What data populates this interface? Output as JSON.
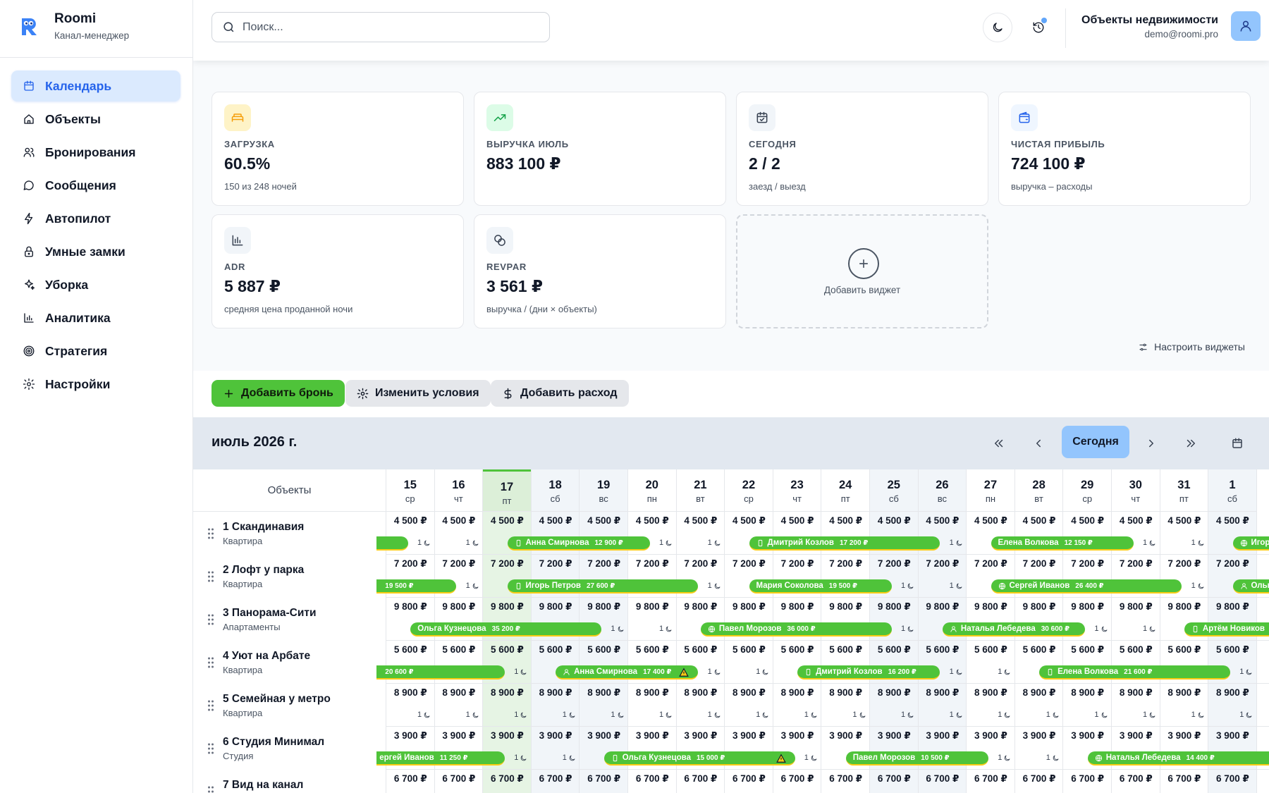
{
  "brand": {
    "name": "Roomi",
    "subtitle": "Канал-менеджер"
  },
  "nav": [
    {
      "label": "Календарь",
      "icon": "calendar-icon",
      "active": true
    },
    {
      "label": "Объекты",
      "icon": "home-icon"
    },
    {
      "label": "Бронирования",
      "icon": "users-icon"
    },
    {
      "label": "Сообщения",
      "icon": "message-icon"
    },
    {
      "label": "Автопилот",
      "icon": "bolt-icon"
    },
    {
      "label": "Умные замки",
      "icon": "lock-icon"
    },
    {
      "label": "Уборка",
      "icon": "sparkle-icon"
    },
    {
      "label": "Аналитика",
      "icon": "bar-chart-icon"
    },
    {
      "label": "Стратегия",
      "icon": "target-icon"
    },
    {
      "label": "Настройки",
      "icon": "gear-icon"
    }
  ],
  "search": {
    "placeholder": "Поиск..."
  },
  "user": {
    "name": "Объекты недвижимости",
    "email": "demo@roomi.pro"
  },
  "widgets": [
    {
      "label": "ЗАГРУЗКА",
      "value": "60.5%",
      "sub": "150 из 248 ночей",
      "icon": "bed-icon",
      "icon_bg": "#fef3c7",
      "icon_color": "#f59e0b"
    },
    {
      "label": "ВЫРУЧКА ИЮЛЬ",
      "value": "883 100 ₽",
      "sub": "",
      "icon": "trend-up-icon",
      "icon_bg": "#dcfce7",
      "icon_color": "#16a34a"
    },
    {
      "label": "СЕГОДНЯ",
      "value": "2 / 2",
      "sub": "заезд / выезд",
      "icon": "calendar-check-icon",
      "icon_bg": "#f1f5f9",
      "icon_color": "#374151"
    },
    {
      "label": "ЧИСТАЯ ПРИБЫЛЬ",
      "value": "724 100 ₽",
      "sub": "выручка – расходы",
      "icon": "wallet-icon",
      "icon_bg": "#eff6ff",
      "icon_color": "#2563eb"
    },
    {
      "label": "ADR",
      "value": "5 887 ₽",
      "sub": "средняя цена проданной ночи",
      "icon": "chart-icon",
      "icon_bg": "#f1f5f9",
      "icon_color": "#374151"
    },
    {
      "label": "REVPAR",
      "value": "3 561 ₽",
      "sub": "выручка / (дни × объекты)",
      "icon": "coins-icon",
      "icon_bg": "#f1f5f9",
      "icon_color": "#374151"
    }
  ],
  "add_widget": "Добавить виджет",
  "configure_widgets": "Настроить виджеты",
  "actions": {
    "add_booking": "Добавить бронь",
    "change_terms": "Изменить условия",
    "add_expense": "Добавить расход"
  },
  "calendar": {
    "month": "июль 2026 г.",
    "today_label": "Сегодня",
    "objects_header": "Объекты",
    "days": [
      {
        "d": "15",
        "w": "ср"
      },
      {
        "d": "16",
        "w": "чт"
      },
      {
        "d": "17",
        "w": "пт",
        "today": true
      },
      {
        "d": "18",
        "w": "сб",
        "weekend": true
      },
      {
        "d": "19",
        "w": "вс",
        "weekend": true
      },
      {
        "d": "20",
        "w": "пн"
      },
      {
        "d": "21",
        "w": "вт"
      },
      {
        "d": "22",
        "w": "ср"
      },
      {
        "d": "23",
        "w": "чт"
      },
      {
        "d": "24",
        "w": "пт"
      },
      {
        "d": "25",
        "w": "сб",
        "weekend": true
      },
      {
        "d": "26",
        "w": "вс",
        "weekend": true
      },
      {
        "d": "27",
        "w": "пн"
      },
      {
        "d": "28",
        "w": "вт"
      },
      {
        "d": "29",
        "w": "ср"
      },
      {
        "d": "30",
        "w": "чт"
      },
      {
        "d": "31",
        "w": "пт"
      },
      {
        "d": "1",
        "w": "сб",
        "weekend": true
      }
    ],
    "properties": [
      {
        "name": "1 Скандинавия",
        "type": "Квартира",
        "price": "4 500 ₽",
        "bookings": [
          {
            "guest": "",
            "amount": "",
            "start": -1,
            "end": 0.45
          },
          {
            "guest": "Анна Смирнова",
            "amount": "12 900 ₽",
            "start": 2.5,
            "end": 5.45,
            "src": "phone"
          },
          {
            "guest": "Дмитрий Козлов",
            "amount": "17 200 ₽",
            "start": 7.5,
            "end": 11.45,
            "src": "phone"
          },
          {
            "guest": "Елена Волкова",
            "amount": "12 150 ₽",
            "start": 12.5,
            "end": 15.45
          },
          {
            "guest": "Игорь Петров",
            "amount": "",
            "start": 17.5,
            "end": 20,
            "src": "globe"
          }
        ]
      },
      {
        "name": "2 Лофт у парка",
        "type": "Квартира",
        "price": "7 200 ₽",
        "bookings": [
          {
            "guest": "",
            "amount": "19 500 ₽",
            "start": -1,
            "end": 1.45
          },
          {
            "guest": "Игорь Петров",
            "amount": "27 600 ₽",
            "start": 2.5,
            "end": 6.45,
            "src": "phone"
          },
          {
            "guest": "Мария Соколова",
            "amount": "19 500 ₽",
            "start": 7.5,
            "end": 10.45
          },
          {
            "guest": "Сергей Иванов",
            "amount": "26 400 ₽",
            "start": 12.5,
            "end": 16.45,
            "src": "globe"
          },
          {
            "guest": "Ольга Кузнецова",
            "amount": "",
            "start": 17.5,
            "end": 20,
            "src": "user"
          }
        ]
      },
      {
        "name": "3 Панорама-Сити",
        "type": "Апартаменты",
        "price": "9 800 ₽",
        "bookings": [
          {
            "guest": "Ольга Кузнецова",
            "amount": "35 200 ₽",
            "start": 0.5,
            "end": 4.45
          },
          {
            "guest": "Павел Морозов",
            "amount": "36 000 ₽",
            "start": 6.5,
            "end": 10.45,
            "src": "globe"
          },
          {
            "guest": "Наталья Лебедева",
            "amount": "30 600 ₽",
            "start": 11.5,
            "end": 14.45,
            "src": "user"
          },
          {
            "guest": "Артём Новиков",
            "amount": "",
            "start": 16.5,
            "end": 20,
            "src": "phone"
          }
        ]
      },
      {
        "name": "4 Уют на Арбате",
        "type": "Квартира",
        "price": "5 600 ₽",
        "bookings": [
          {
            "guest": "",
            "amount": "20 600 ₽",
            "start": -1,
            "end": 2.45
          },
          {
            "guest": "Анна Смирнова",
            "amount": "17 400 ₽",
            "start": 3.5,
            "end": 6.45,
            "src": "user",
            "warn": true
          },
          {
            "guest": "Дмитрий Козлов",
            "amount": "16 200 ₽",
            "start": 8.5,
            "end": 11.45,
            "src": "phone"
          },
          {
            "guest": "Елена Волкова",
            "amount": "21 600 ₽",
            "start": 13.5,
            "end": 17.45,
            "src": "phone"
          }
        ]
      },
      {
        "name": "5 Семейная у метро",
        "type": "Квартира",
        "price": "8 900 ₽",
        "bookings": []
      },
      {
        "name": "6 Студия Минимал",
        "type": "Студия",
        "price": "3 900 ₽",
        "bookings": [
          {
            "guest": "ергей Иванов",
            "amount": "11 250 ₽",
            "start": -1,
            "end": 2.45
          },
          {
            "guest": "Ольга Кузнецова",
            "amount": "15 000 ₽",
            "start": 4.5,
            "end": 8.45,
            "src": "phone",
            "warn": true
          },
          {
            "guest": "Павел Морозов",
            "amount": "10 500 ₽",
            "start": 9.5,
            "end": 12.45
          },
          {
            "guest": "Наталья Лебедева",
            "amount": "14 400 ₽",
            "start": 14.5,
            "end": 20,
            "src": "globe"
          }
        ]
      },
      {
        "name": "7 Вид на канал",
        "type": "",
        "price": "6 700 ₽",
        "bookings": []
      }
    ]
  }
}
